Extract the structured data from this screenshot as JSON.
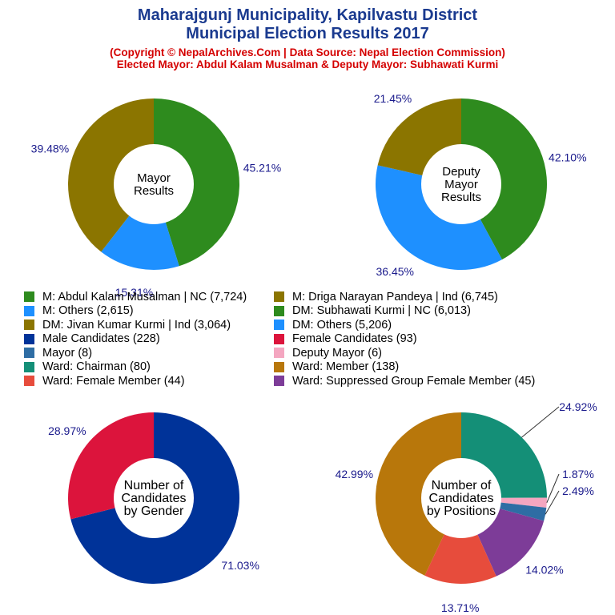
{
  "header": {
    "title_line1": "Maharajgunj Municipality, Kapilvastu District",
    "title_line2": "Municipal Election Results 2017",
    "subtitle_line1": "(Copyright © NepalArchives.Com | Data Source: Nepal Election Commission)",
    "subtitle_line2": "Elected Mayor: Abdul Kalam Musalman & Deputy Mayor: Subhawati Kurmi"
  },
  "chart_data": [
    {
      "type": "pie",
      "title": "Mayor Results",
      "center_lines": [
        "Mayor",
        "Results"
      ],
      "slices": [
        {
          "label": "M: Abdul Kalam Musalman | NC",
          "value": 7724,
          "percent_label": "45.21%",
          "color": "#2e8b1e"
        },
        {
          "label": "M: Others",
          "value": 2615,
          "percent_label": "15.31%",
          "color": "#1e90ff"
        },
        {
          "label": "M: Driga Narayan Pandeya | Ind",
          "value": 6745,
          "percent_label": "39.48%",
          "color": "#8b7500"
        }
      ]
    },
    {
      "type": "pie",
      "title": "Deputy Mayor Results",
      "center_lines": [
        "Deputy",
        "Mayor",
        "Results"
      ],
      "slices": [
        {
          "label": "DM: Subhawati Kurmi | NC",
          "value": 6013,
          "percent_label": "42.10%",
          "color": "#2e8b1e"
        },
        {
          "label": "DM: Others",
          "value": 5206,
          "percent_label": "36.45%",
          "color": "#1e90ff"
        },
        {
          "label": "DM: Jivan Kumar Kurmi | Ind",
          "value": 3064,
          "percent_label": "21.45%",
          "color": "#8b7500"
        }
      ]
    },
    {
      "type": "pie",
      "title": "Number of Candidates by Gender",
      "center_lines": [
        "Number of",
        "Candidates",
        "by Gender"
      ],
      "slices": [
        {
          "label": "Male Candidates",
          "value": 228,
          "percent_label": "71.03%",
          "color": "#003399"
        },
        {
          "label": "Female Candidates",
          "value": 93,
          "percent_label": "28.97%",
          "color": "#dc143c"
        }
      ]
    },
    {
      "type": "pie",
      "title": "Number of Candidates by Positions",
      "center_lines": [
        "Number of",
        "Candidates",
        "by Positions"
      ],
      "slices": [
        {
          "label": "Ward: Chairman",
          "value": 80,
          "percent_label": "24.92%",
          "color": "#148f77"
        },
        {
          "label": "Deputy Mayor",
          "value": 6,
          "percent_label": "1.87%",
          "color": "#f4a6c0"
        },
        {
          "label": "Mayor",
          "value": 8,
          "percent_label": "2.49%",
          "color": "#2e6da4"
        },
        {
          "label": "Ward: Suppressed Group Female Member",
          "value": 45,
          "percent_label": "14.02%",
          "color": "#7d3c98"
        },
        {
          "label": "Ward: Female Member",
          "value": 44,
          "percent_label": "13.71%",
          "color": "#e74c3c"
        },
        {
          "label": "Ward: Member",
          "value": 138,
          "percent_label": "42.99%",
          "color": "#b8770b"
        }
      ]
    }
  ],
  "legend": [
    {
      "label": "M: Abdul Kalam Musalman | NC (7,724)",
      "color": "#2e8b1e"
    },
    {
      "label": "M: Driga Narayan Pandeya | Ind (6,745)",
      "color": "#8b7500"
    },
    {
      "label": "M: Others (2,615)",
      "color": "#1e90ff"
    },
    {
      "label": "DM: Subhawati Kurmi | NC (6,013)",
      "color": "#2e8b1e"
    },
    {
      "label": "DM: Jivan Kumar Kurmi | Ind (3,064)",
      "color": "#8b7500"
    },
    {
      "label": "DM: Others (5,206)",
      "color": "#1e90ff"
    },
    {
      "label": "Male Candidates (228)",
      "color": "#003399"
    },
    {
      "label": "Female Candidates (93)",
      "color": "#dc143c"
    },
    {
      "label": "Mayor (8)",
      "color": "#2e6da4"
    },
    {
      "label": "Deputy Mayor (6)",
      "color": "#f4a6c0"
    },
    {
      "label": "Ward: Chairman (80)",
      "color": "#148f77"
    },
    {
      "label": "Ward: Member (138)",
      "color": "#b8770b"
    },
    {
      "label": "Ward: Female Member (44)",
      "color": "#e74c3c"
    },
    {
      "label": "Ward: Suppressed Group Female Member (45)",
      "color": "#7d3c98"
    }
  ]
}
